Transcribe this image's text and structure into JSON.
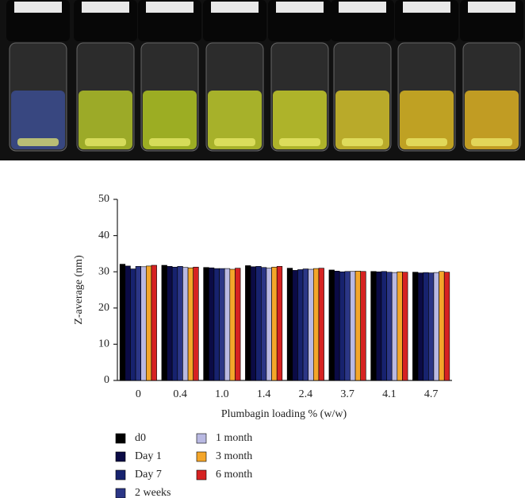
{
  "chart_data": {
    "type": "bar",
    "y_label": "Z-average (nm)",
    "x_label": "Plumbagin loading % (w/w)",
    "categories": [
      "0",
      "0.4",
      "1.0",
      "1.4",
      "2.4",
      "3.7",
      "4.1",
      "4.7"
    ],
    "series": [
      {
        "name": "d0",
        "color": "#000000",
        "values": [
          32.1,
          31.8,
          31.2,
          31.7,
          31.0,
          30.5,
          30.1,
          29.9
        ]
      },
      {
        "name": "Day 1",
        "color": "#0b0b45",
        "values": [
          31.6,
          31.5,
          31.1,
          31.4,
          30.4,
          30.2,
          30.0,
          29.7
        ]
      },
      {
        "name": "Day 7",
        "color": "#17226e",
        "values": [
          30.8,
          31.3,
          30.9,
          31.5,
          30.6,
          30.0,
          30.1,
          29.8
        ]
      },
      {
        "name": "2 weeks",
        "color": "#2b3686",
        "values": [
          31.5,
          31.5,
          30.9,
          31.2,
          30.8,
          30.1,
          29.9,
          29.7
        ]
      },
      {
        "name": "1 month",
        "color": "#b9b9e2",
        "values": [
          31.4,
          31.2,
          30.9,
          31.0,
          30.7,
          30.1,
          29.8,
          29.8
        ]
      },
      {
        "name": "3 month",
        "color": "#f4a62a",
        "values": [
          31.6,
          31.1,
          30.7,
          31.3,
          30.9,
          30.2,
          30.0,
          30.1
        ]
      },
      {
        "name": "6 month",
        "color": "#d62222",
        "values": [
          31.8,
          31.3,
          31.0,
          31.5,
          31.0,
          30.1,
          29.9,
          29.9
        ]
      }
    ],
    "ylim": [
      0,
      50
    ],
    "yticks": [
      0,
      10,
      20,
      30,
      40,
      50
    ],
    "grid": false
  }
}
